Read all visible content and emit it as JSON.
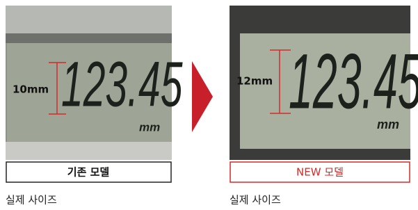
{
  "panels": [
    {
      "measure": "10mm",
      "display": "123.45",
      "unit": "mm",
      "label": "기존 모델",
      "caption": "실제 사이즈"
    },
    {
      "measure": "12mm",
      "display": "123.45",
      "unit": "mm",
      "label": "NEW 모델",
      "caption": "실제 사이즈"
    }
  ]
}
